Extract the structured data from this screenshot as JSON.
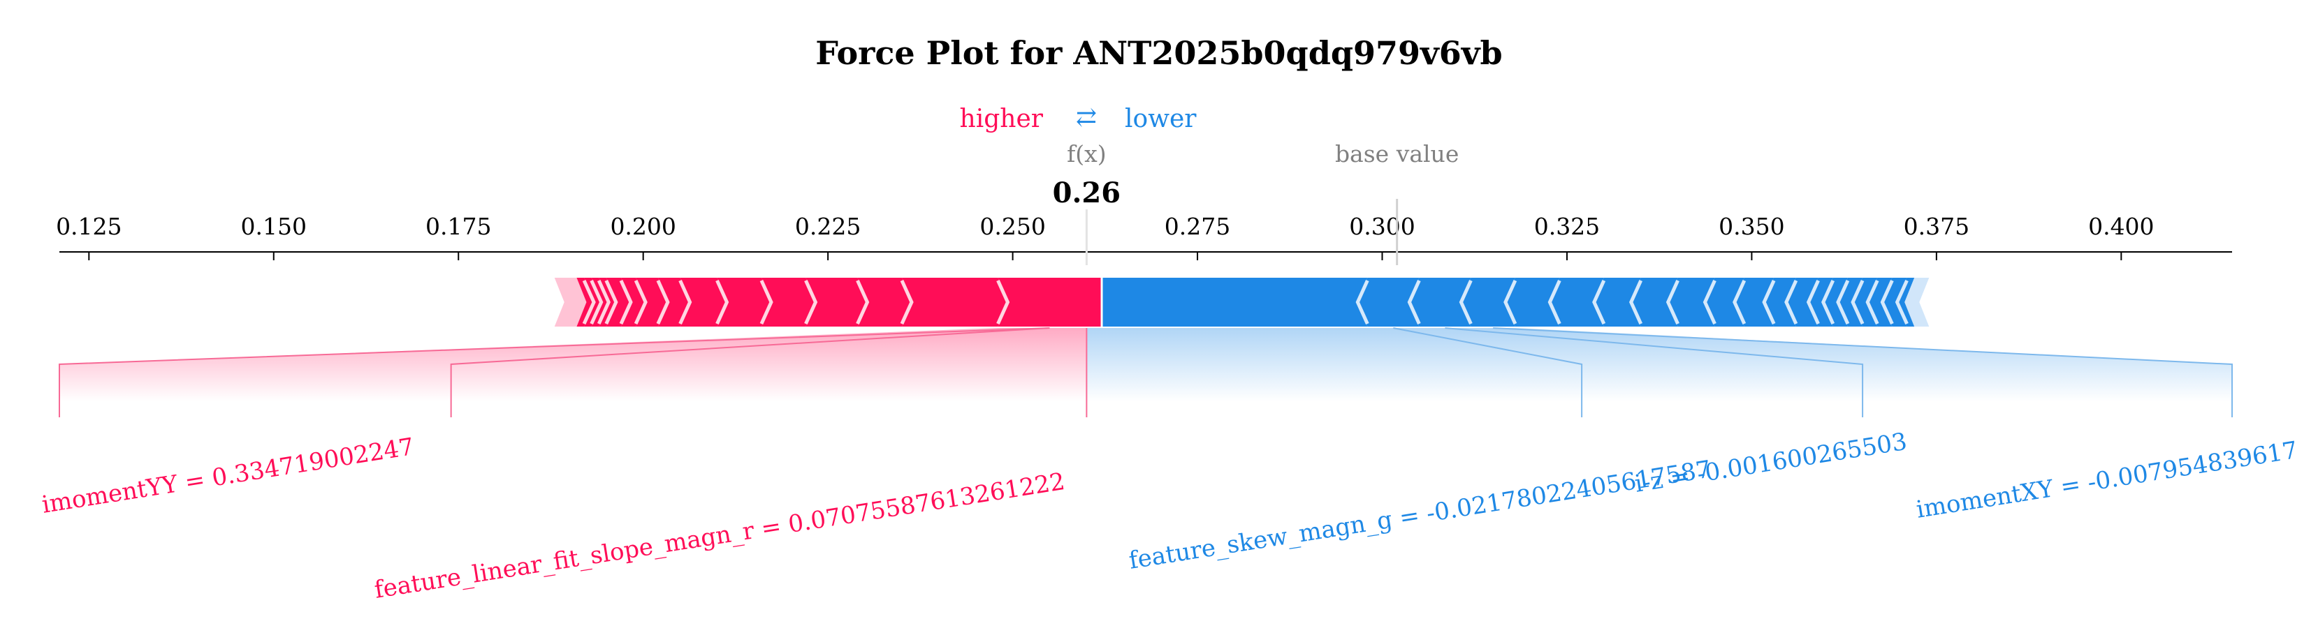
{
  "chart_data": {
    "type": "force",
    "title": "Force Plot for ANT2025b0qdq979v6vb",
    "legend": {
      "higher_label": "higher",
      "lower_label": "lower",
      "swap_symbol": "⇄"
    },
    "output_label": "f(x)",
    "output_value": 0.26,
    "output_value_text": "0.26",
    "base_value_label": "base value",
    "base_value": 0.302,
    "x_axis": {
      "min": 0.121,
      "max": 0.415,
      "ticks": [
        0.125,
        0.15,
        0.175,
        0.2,
        0.225,
        0.25,
        0.275,
        0.3,
        0.325,
        0.35,
        0.375,
        0.4
      ],
      "tick_labels": [
        "0.125",
        "0.150",
        "0.175",
        "0.200",
        "0.225",
        "0.250",
        "0.275",
        "0.300",
        "0.325",
        "0.350",
        "0.375",
        "0.400"
      ]
    },
    "bar_range": {
      "positive_start": 0.188,
      "negative_end": 0.374
    },
    "positive_segment_boundaries": [
      0.262,
      0.248,
      0.235,
      0.229,
      0.222,
      0.216,
      0.21,
      0.205,
      0.202,
      0.199,
      0.197,
      0.195,
      0.194,
      0.193,
      0.192,
      0.191
    ],
    "negative_segment_boundaries": [
      0.262,
      0.298,
      0.305,
      0.312,
      0.318,
      0.324,
      0.33,
      0.335,
      0.34,
      0.345,
      0.349,
      0.353,
      0.356,
      0.359,
      0.361,
      0.363,
      0.365,
      0.367,
      0.369,
      0.371,
      0.372
    ],
    "features": [
      {
        "label": "imomentYY = 0.334719002247",
        "direction": "positive",
        "seg_start": 0.262,
        "seg_end": 0.248,
        "label_pos": 0.121
      },
      {
        "label": "feature_linear_fit_slope_magn_r = 0.07075587613261222",
        "direction": "positive",
        "seg_start": 0.248,
        "seg_end": 0.262,
        "label_pos": 0.174
      },
      {
        "label": "feature_skew_magn_g = -0.02178022405617587",
        "direction": "negative",
        "seg_start": 0.298,
        "seg_end": 0.305,
        "label_pos": 0.327
      },
      {
        "label": "i-z = -0.001600265503",
        "direction": "negative",
        "seg_start": 0.305,
        "seg_end": 0.312,
        "label_pos": 0.365
      },
      {
        "label": "imomentXY = -0.007954839617",
        "direction": "negative",
        "seg_start": 0.312,
        "seg_end": 0.318,
        "label_pos": 0.415
      }
    ],
    "colors": {
      "positive": "#ff0d57",
      "negative": "#1e88e5",
      "positive_light": "#ffc3d5",
      "negative_light": "#d1e6fa",
      "positive_line": "#f76a96",
      "negative_line": "#7db8ec",
      "meta": "#808080"
    }
  }
}
